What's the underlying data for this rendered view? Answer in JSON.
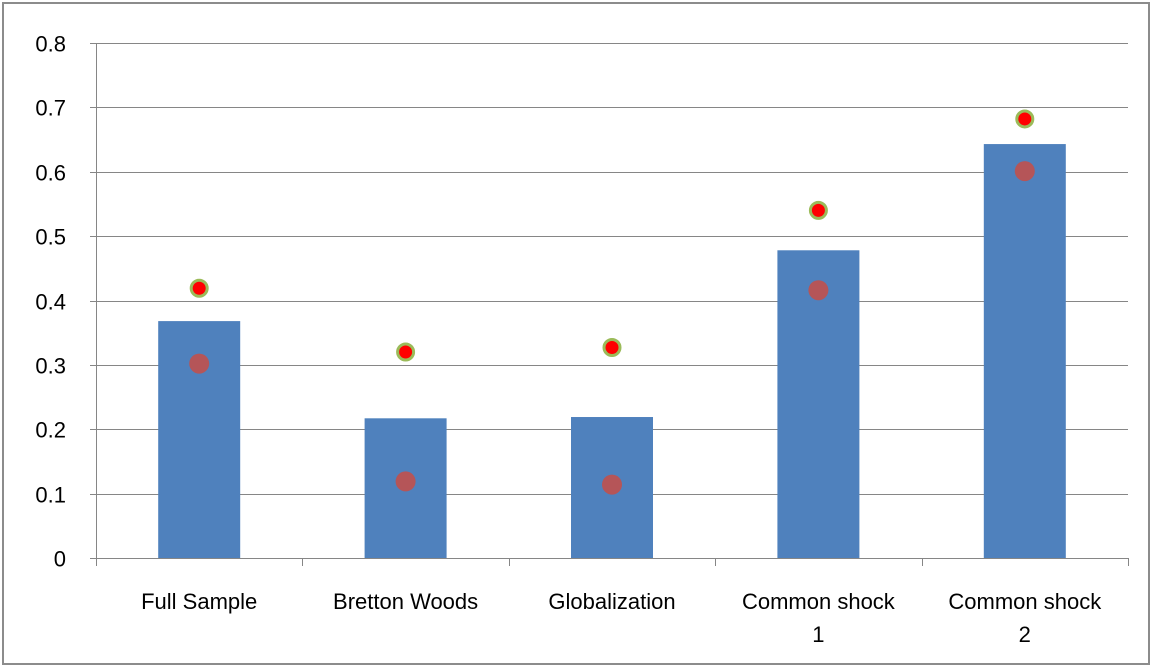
{
  "chart_data": {
    "type": "bar",
    "categories": [
      [
        "Full Sample"
      ],
      [
        "Bretton Woods"
      ],
      [
        "Globalization"
      ],
      [
        "Common shock",
        "1"
      ],
      [
        "Common shock",
        "2"
      ]
    ],
    "y_ticks": [
      "0",
      "0.1",
      "0.2",
      "0.3",
      "0.4",
      "0.5",
      "0.6",
      "0.7",
      "0.8"
    ],
    "ylim": [
      0,
      0.8
    ],
    "grid": true,
    "series": [
      {
        "type": "bar",
        "values": [
          0.368,
          0.217,
          0.219,
          0.478,
          0.643
        ]
      },
      {
        "type": "scatter",
        "values": [
          0.302,
          0.119,
          0.114,
          0.416,
          0.601
        ]
      },
      {
        "type": "scatter",
        "values": [
          0.419,
          0.32,
          0.327,
          0.54,
          0.682
        ]
      }
    ]
  },
  "colors": {
    "bar": "#4f81bd",
    "lower_marker": "#c0504d",
    "upper_marker": "#ff0000",
    "upper_marker_outline": "#9bbb59",
    "grid": "#868686",
    "axis": "#868686"
  }
}
